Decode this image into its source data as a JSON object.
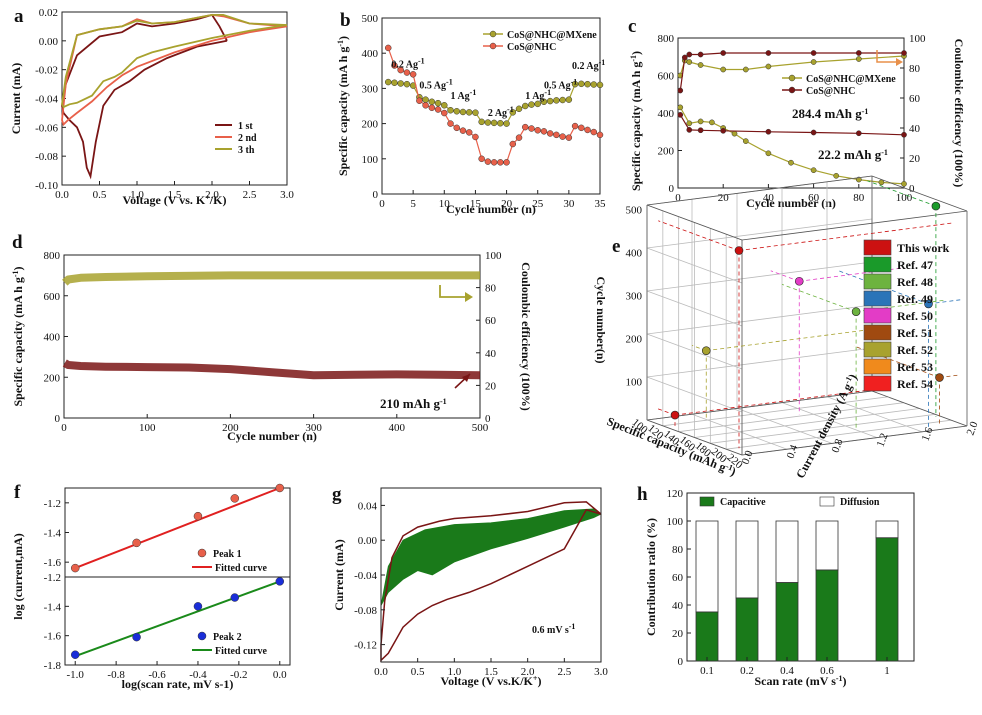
{
  "chart_data": [
    {
      "panel": "a",
      "type": "line",
      "xlabel": "Voltage (V vs. K+/K)",
      "ylabel": "Current (mA)",
      "xlim": [
        0.0,
        3.0
      ],
      "ylim": [
        -0.1,
        0.02
      ],
      "xticks": [
        "0.0",
        "0.5",
        "1.0",
        "1.5",
        "2.0",
        "2.5",
        "3.0"
      ],
      "yticks": [
        "0.02",
        "0.00",
        "-0.02",
        "-0.04",
        "-0.06",
        "-0.08",
        "-0.10"
      ],
      "legend": "bottom-right",
      "series": [
        {
          "name": "1 st",
          "color": "#7a1515",
          "x": [
            2.2,
            1.8,
            1.4,
            1.1,
            0.9,
            0.7,
            0.55,
            0.45,
            0.38,
            0.33,
            0.28,
            0.2,
            0.1,
            0.02,
            0.0,
            0.05,
            0.2,
            0.5,
            0.8,
            1.0,
            1.2,
            1.5,
            1.8,
            2.0,
            2.1,
            2.2
          ],
          "y": [
            0.0,
            -0.004,
            -0.012,
            -0.02,
            -0.028,
            -0.034,
            -0.045,
            -0.07,
            -0.094,
            -0.088,
            -0.07,
            -0.06,
            -0.055,
            -0.05,
            -0.045,
            -0.03,
            -0.01,
            0.003,
            0.006,
            0.012,
            0.01,
            0.012,
            0.015,
            0.018,
            0.01,
            0.0
          ]
        },
        {
          "name": "2 nd",
          "color": "#e8604a",
          "x": [
            3.0,
            2.5,
            2.0,
            1.5,
            1.0,
            0.8,
            0.6,
            0.4,
            0.2,
            0.08,
            0.02,
            0.0,
            0.05,
            0.2,
            0.5,
            0.8,
            1.0,
            1.2,
            1.5,
            1.8,
            2.0,
            2.15,
            2.5,
            3.0
          ],
          "y": [
            0.01,
            0.006,
            0.0,
            -0.008,
            -0.018,
            -0.024,
            -0.032,
            -0.042,
            -0.05,
            -0.055,
            -0.058,
            -0.055,
            -0.03,
            0.004,
            0.008,
            0.01,
            0.015,
            0.012,
            0.013,
            0.016,
            0.018,
            0.017,
            0.012,
            0.01
          ]
        },
        {
          "name": "3 th",
          "color": "#a8a22e",
          "x": [
            3.0,
            2.5,
            2.0,
            1.5,
            1.2,
            1.0,
            0.8,
            0.7,
            0.55,
            0.4,
            0.2,
            0.1,
            0.02,
            0.0,
            0.05,
            0.2,
            0.5,
            0.8,
            1.0,
            1.2,
            1.5,
            1.8,
            2.0,
            2.15,
            2.5,
            3.0
          ],
          "y": [
            0.011,
            0.007,
            0.002,
            -0.004,
            -0.008,
            -0.012,
            -0.022,
            -0.025,
            -0.028,
            -0.038,
            -0.043,
            -0.044,
            -0.046,
            -0.044,
            -0.025,
            0.004,
            0.008,
            0.01,
            0.014,
            0.012,
            0.013,
            0.016,
            0.018,
            0.018,
            0.012,
            0.011
          ]
        }
      ]
    },
    {
      "panel": "b",
      "type": "line",
      "xlabel": "Cycle number (n)",
      "ylabel": "Specific capacity (mA h g-1)",
      "xlim": [
        0,
        35
      ],
      "ylim": [
        0,
        500
      ],
      "xticks": [
        "0",
        "5",
        "10",
        "15",
        "20",
        "25",
        "30",
        "35"
      ],
      "yticks": [
        "0",
        "100",
        "200",
        "300",
        "400",
        "500"
      ],
      "legend": "top-right",
      "annotations": [
        {
          "text": "0.2 Ag-1",
          "x": 1.5,
          "y": 360
        },
        {
          "text": "0.5 Ag-1",
          "x": 6,
          "y": 300
        },
        {
          "text": "1 Ag-1",
          "x": 11,
          "y": 270
        },
        {
          "text": "2 Ag-1",
          "x": 17,
          "y": 222
        },
        {
          "text": "1 Ag-1",
          "x": 23,
          "y": 270
        },
        {
          "text": "0.5 Ag-1",
          "x": 26,
          "y": 300
        },
        {
          "text": "0.2 Ag-1",
          "x": 30.5,
          "y": 355
        }
      ],
      "series": [
        {
          "name": "CoS@NHC@MXene",
          "color": "#a8a22e",
          "x": [
            1,
            2,
            3,
            4,
            5,
            6,
            7,
            8,
            9,
            10,
            11,
            12,
            13,
            14,
            15,
            16,
            17,
            18,
            19,
            20,
            21,
            22,
            23,
            24,
            25,
            26,
            27,
            28,
            29,
            30,
            31,
            32,
            33,
            34,
            35
          ],
          "y": [
            318,
            316,
            314,
            312,
            308,
            275,
            268,
            262,
            258,
            252,
            238,
            235,
            233,
            232,
            231,
            205,
            203,
            202,
            201,
            200,
            232,
            242,
            250,
            254,
            256,
            262,
            264,
            266,
            267,
            268,
            312,
            313,
            312,
            311,
            310
          ]
        },
        {
          "name": "CoS@NHC",
          "color": "#e8604a",
          "x": [
            1,
            2,
            3,
            4,
            5,
            6,
            7,
            8,
            9,
            10,
            11,
            12,
            13,
            14,
            15,
            16,
            17,
            18,
            19,
            20,
            21,
            22,
            23,
            24,
            25,
            26,
            27,
            28,
            29,
            30,
            31,
            32,
            33,
            34,
            35
          ],
          "y": [
            415,
            365,
            352,
            345,
            340,
            265,
            252,
            245,
            240,
            230,
            200,
            188,
            180,
            175,
            162,
            100,
            92,
            90,
            90,
            90,
            142,
            160,
            190,
            186,
            181,
            178,
            172,
            168,
            163,
            160,
            193,
            188,
            182,
            176,
            168
          ]
        }
      ]
    },
    {
      "panel": "c",
      "type": "line",
      "xlabel": "Cycle number (n)",
      "ylabel": "Specific capacity (mA h g-1)",
      "y2label": "Coulombic efficiency (100%)",
      "xlim": [
        0,
        100
      ],
      "ylim": [
        0,
        800
      ],
      "y2lim": [
        0,
        100
      ],
      "xticks": [
        "0",
        "20",
        "40",
        "60",
        "80",
        "100"
      ],
      "yticks": [
        "0",
        "200",
        "400",
        "600",
        "800"
      ],
      "y2ticks": [
        "0",
        "20",
        "40",
        "60",
        "80",
        "100"
      ],
      "legend": "center-right",
      "annotations": [
        {
          "text": "284.4 mAh g-1"
        },
        {
          "text": "22.2 mAh g-1"
        }
      ],
      "series": [
        {
          "name": "CoS@NHC@MXene",
          "color": "#a8a22e",
          "axis": "capacity",
          "x": [
            1,
            5,
            10,
            15,
            20,
            25,
            30,
            40,
            50,
            60,
            70,
            80,
            90,
            100
          ],
          "y": [
            430,
            345,
            355,
            350,
            320,
            290,
            250,
            185,
            135,
            95,
            65,
            45,
            30,
            22
          ]
        },
        {
          "name": "CoS@NHC",
          "color": "#7a1515",
          "axis": "capacity",
          "x": [
            1,
            5,
            10,
            20,
            40,
            60,
            80,
            100
          ],
          "y": [
            390,
            310,
            308,
            305,
            300,
            296,
            292,
            284
          ]
        },
        {
          "name": "CoS@NHC@MXene",
          "color": "#a8a22e",
          "axis": "efficiency",
          "x": [
            1,
            3,
            5,
            10,
            20,
            30,
            40,
            60,
            80,
            100
          ],
          "y": [
            75,
            85,
            84,
            82,
            79,
            79,
            81,
            84,
            86,
            88
          ]
        },
        {
          "name": "CoS@NHC",
          "color": "#7a1515",
          "axis": "efficiency",
          "x": [
            1,
            3,
            5,
            10,
            20,
            40,
            60,
            80,
            100
          ],
          "y": [
            65,
            87,
            89,
            89,
            90,
            90,
            90,
            90,
            90
          ]
        }
      ]
    },
    {
      "panel": "d",
      "type": "line",
      "xlabel": "Cycle number (n)",
      "ylabel": "Specific capacity (mA h g-1)",
      "y2label": "Coulombic efficiency (100%)",
      "xlim": [
        0,
        500
      ],
      "ylim": [
        0,
        800
      ],
      "y2lim": [
        0,
        100
      ],
      "xticks": [
        "0",
        "100",
        "200",
        "300",
        "400",
        "500"
      ],
      "yticks": [
        "0",
        "200",
        "400",
        "600",
        "800"
      ],
      "y2ticks": [
        "0",
        "20",
        "40",
        "60",
        "80",
        "100"
      ],
      "annotations": [
        {
          "text": "210 mAh g-1"
        }
      ],
      "series": [
        {
          "name": "capacity",
          "color": "#7a1515",
          "axis": "capacity",
          "x": [
            1,
            5,
            20,
            50,
            100,
            150,
            200,
            250,
            300,
            350,
            400,
            450,
            500
          ],
          "y": [
            270,
            260,
            255,
            252,
            250,
            248,
            240,
            225,
            210,
            212,
            214,
            212,
            210
          ]
        },
        {
          "name": "efficiency",
          "color": "#a8a22e",
          "axis": "efficiency",
          "x": [
            1,
            5,
            20,
            50,
            100,
            200,
            300,
            400,
            500
          ],
          "y": [
            83,
            85,
            86,
            86.5,
            87,
            87.5,
            87.5,
            87.5,
            87.5
          ]
        }
      ]
    },
    {
      "panel": "e",
      "type": "scatter",
      "xlabel": "Specific capacity (mAh g-1)",
      "ylabel": "Cycle number(n)",
      "zlabel": "Current density (A g-1)",
      "xticks": [
        "100",
        "120",
        "140",
        "160",
        "180",
        "200",
        "220"
      ],
      "yticks": [
        "100",
        "200",
        "300",
        "400",
        "500"
      ],
      "zticks": [
        "0.0",
        "0.4",
        "0.8",
        "1.2",
        "1.6",
        "2.0"
      ],
      "legend": "right",
      "legend_items": [
        {
          "name": "This work",
          "color": "#cc1111"
        },
        {
          "name": "Ref. 47",
          "color": "#1a9a2a"
        },
        {
          "name": "Ref. 48",
          "color": "#6db33f"
        },
        {
          "name": "Ref. 49",
          "color": "#2b74b8"
        },
        {
          "name": "Ref. 50",
          "color": "#e33cc6"
        },
        {
          "name": "Ref. 51",
          "color": "#a04a10"
        },
        {
          "name": "Ref. 52",
          "color": "#a8a22e"
        },
        {
          "name": "Ref. 53",
          "color": "#f08a1c"
        },
        {
          "name": "Ref. 54",
          "color": "#f02020"
        }
      ]
    },
    {
      "panel": "f",
      "type": "scatter",
      "xlabel": "log(scan rate, mV s-1)",
      "ylabel": "log (current,mA)",
      "xlim": [
        -1.0,
        0.0
      ],
      "xticks": [
        "-1.0",
        "-0.8",
        "-0.6",
        "-0.4",
        "-0.2",
        "0.0"
      ],
      "upper": {
        "ylim": [
          -1.7,
          -1.1
        ],
        "yticks": [
          "-1.2",
          "-1.4",
          "-1.6"
        ],
        "series": [
          {
            "name": "Peak 1",
            "color": "#e8604a",
            "x": [
              -1.0,
              -0.7,
              -0.4,
              -0.22,
              0.0
            ],
            "y": [
              -1.64,
              -1.47,
              -1.29,
              -1.17,
              -1.1
            ]
          },
          {
            "name": "Fitted curve",
            "color": "#e02020",
            "x": [
              -1.0,
              0.0
            ],
            "y": [
              -1.64,
              -1.1
            ]
          }
        ]
      },
      "lower": {
        "ylim": [
          -1.8,
          -1.2
        ],
        "yticks": [
          "-1.2",
          "-1.4",
          "-1.6",
          "-1.8"
        ],
        "series": [
          {
            "name": "Peak 2",
            "color": "#1a2ed8",
            "x": [
              -1.0,
              -0.7,
              -0.4,
              -0.22,
              0.0
            ],
            "y": [
              -1.73,
              -1.61,
              -1.4,
              -1.34,
              -1.23
            ]
          },
          {
            "name": "Fitted curve",
            "color": "#1a8a1a",
            "x": [
              -1.0,
              0.0
            ],
            "y": [
              -1.74,
              -1.23
            ]
          }
        ]
      }
    },
    {
      "panel": "g",
      "type": "area",
      "xlabel": "Voltage (V vs.K/K+)",
      "ylabel": "Current (mA)",
      "xlim": [
        0.0,
        3.0
      ],
      "ylim": [
        -0.14,
        0.06
      ],
      "xticks": [
        "0.0",
        "0.5",
        "1.0",
        "1.5",
        "2.0",
        "2.5",
        "3.0"
      ],
      "yticks": [
        "0.04",
        "0.00",
        "-0.04",
        "-0.08",
        "-0.12"
      ],
      "annotation": "0.6 mV s-1",
      "outer_cv": {
        "color": "#7a1515",
        "x": [
          0.0,
          0.05,
          0.15,
          0.3,
          0.5,
          0.8,
          1.0,
          1.5,
          2.0,
          2.5,
          2.8,
          3.0,
          2.8,
          2.5,
          2.0,
          1.5,
          1.2,
          0.9,
          0.7,
          0.5,
          0.3,
          0.2,
          0.1,
          0.0
        ],
        "y": [
          -0.12,
          -0.07,
          -0.02,
          0.005,
          0.015,
          0.022,
          0.025,
          0.028,
          0.033,
          0.043,
          0.044,
          0.03,
          0.035,
          -0.01,
          -0.03,
          -0.05,
          -0.06,
          -0.068,
          -0.075,
          -0.085,
          -0.1,
          -0.115,
          -0.13,
          -0.138
        ]
      },
      "capacitive": {
        "color": "#1a7a1a",
        "x": [
          0.0,
          0.1,
          0.3,
          0.6,
          1.0,
          1.5,
          2.0,
          2.5,
          2.9,
          3.0,
          2.9,
          2.5,
          2.0,
          1.5,
          1.0,
          0.8,
          0.7,
          0.5,
          0.3,
          0.1,
          0.0
        ],
        "y": [
          -0.075,
          -0.03,
          0.0,
          0.012,
          0.018,
          0.02,
          0.025,
          0.034,
          0.036,
          0.03,
          0.026,
          0.015,
          0.002,
          -0.01,
          -0.025,
          -0.035,
          -0.04,
          -0.035,
          -0.045,
          -0.06,
          -0.075
        ]
      }
    },
    {
      "panel": "h",
      "type": "bar",
      "xlabel": "Scan rate (mV s-1)",
      "ylabel": "Contribution ratio (%)",
      "categories": [
        "0.1",
        "0.2",
        "0.4",
        "0.6",
        "1"
      ],
      "ylim": [
        0,
        120
      ],
      "yticks": [
        "0",
        "20",
        "40",
        "60",
        "80",
        "100",
        "120"
      ],
      "legend": "top",
      "series": [
        {
          "name": "Capacitive",
          "color": "#1a7a1a",
          "values": [
            35,
            45,
            56,
            65,
            88
          ]
        },
        {
          "name": "Diffusion",
          "color": "#ffffff",
          "values": [
            65,
            55,
            44,
            35,
            12
          ]
        }
      ]
    }
  ]
}
